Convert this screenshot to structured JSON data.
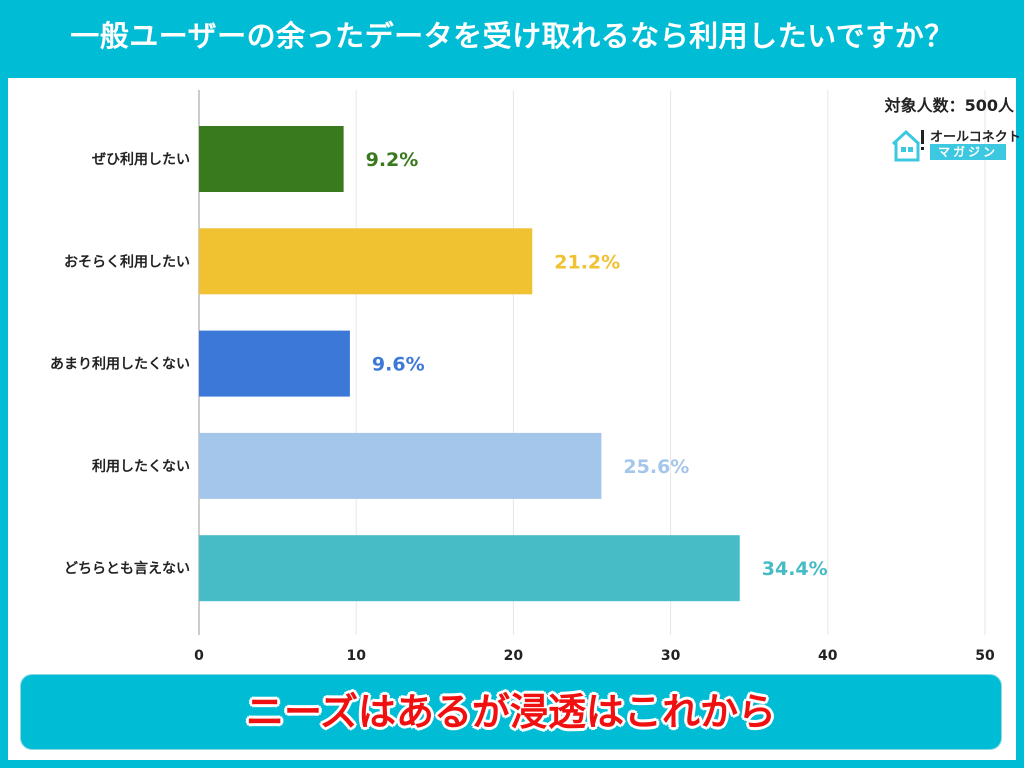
{
  "title": "一般ユーザーの余ったデータを受け取れるなら利用したいですか？",
  "sample_size": "対象人数：500人",
  "logo": {
    "line1": "オールコネクト",
    "line2": "マガジン"
  },
  "banner": "ニーズはあるが浸透はこれから",
  "chart_data": {
    "type": "bar",
    "orientation": "horizontal",
    "categories": [
      "ぜひ利用したい",
      "おそらく利用したい",
      "あまり利用したくない",
      "利用したくない",
      "どちらとも言えない"
    ],
    "values": [
      9.2,
      21.2,
      9.6,
      25.6,
      34.4
    ],
    "data_labels": [
      "9.2%",
      "21.2%",
      "9.6%",
      "25.6%",
      "34.4%"
    ],
    "colors": [
      "#3a7a1f",
      "#f0c232",
      "#3c78d8",
      "#a4c6ea",
      "#47bcc6"
    ],
    "xlim": [
      0,
      50
    ],
    "xticks": [
      0,
      10,
      20,
      30,
      40,
      50
    ],
    "grid": true,
    "title": "",
    "xlabel": "",
    "ylabel": ""
  }
}
